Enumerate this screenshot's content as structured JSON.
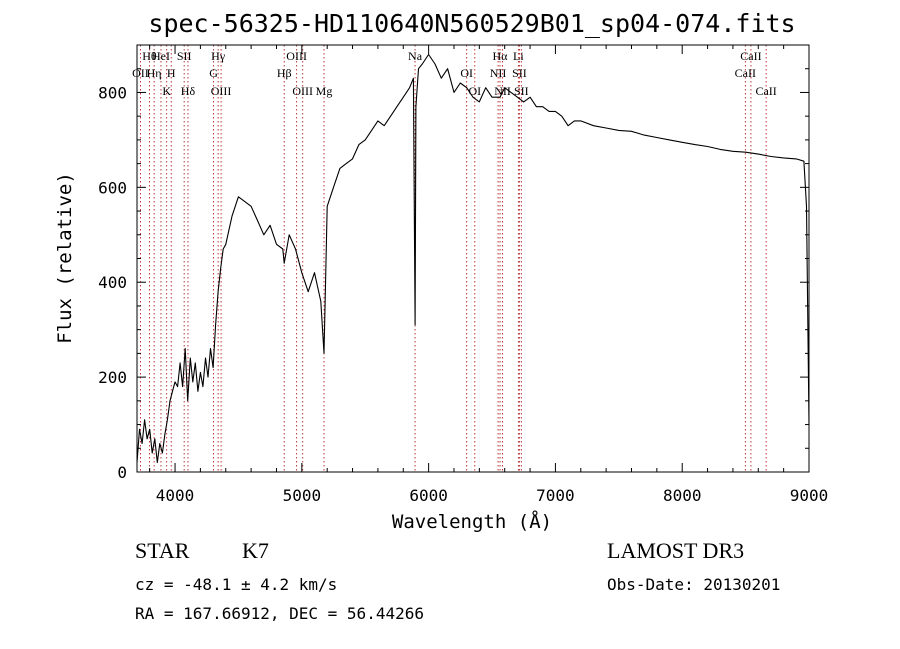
{
  "chart_data": {
    "type": "line",
    "title": "spec-56325-HD110640N560529B01_sp04-074.fits",
    "xlabel": "Wavelength (Å)",
    "ylabel": "Flux (relative)",
    "xlim": [
      3700,
      9000
    ],
    "ylim": [
      0,
      900
    ],
    "x_ticks": [
      4000,
      5000,
      6000,
      7000,
      8000,
      9000
    ],
    "y_ticks": [
      0,
      200,
      400,
      600,
      800
    ],
    "grid": false,
    "series": [
      {
        "color": "#000000",
        "x": [
          3700,
          3720,
          3740,
          3760,
          3780,
          3800,
          3820,
          3840,
          3860,
          3880,
          3900,
          3920,
          3940,
          3960,
          3980,
          4000,
          4020,
          4040,
          4060,
          4080,
          4100,
          4120,
          4140,
          4160,
          4180,
          4200,
          4220,
          4240,
          4260,
          4280,
          4300,
          4320,
          4340,
          4360,
          4380,
          4400,
          4450,
          4500,
          4550,
          4600,
          4650,
          4700,
          4750,
          4800,
          4850,
          4861,
          4900,
          4950,
          5000,
          5050,
          5100,
          5150,
          5175,
          5200,
          5250,
          5300,
          5350,
          5400,
          5450,
          5500,
          5550,
          5600,
          5650,
          5700,
          5750,
          5800,
          5850,
          5880,
          5893,
          5900,
          5920,
          5950,
          6000,
          6050,
          6100,
          6150,
          6200,
          6250,
          6300,
          6350,
          6400,
          6450,
          6500,
          6563,
          6600,
          6650,
          6700,
          6750,
          6800,
          6850,
          6900,
          6950,
          7000,
          7050,
          7100,
          7150,
          7200,
          7300,
          7400,
          7500,
          7600,
          7700,
          7800,
          7900,
          8000,
          8100,
          8200,
          8300,
          8400,
          8500,
          8600,
          8700,
          8800,
          8900,
          8960,
          8980,
          9000
        ],
        "y": [
          20,
          90,
          60,
          110,
          70,
          90,
          40,
          70,
          20,
          60,
          40,
          80,
          110,
          150,
          170,
          190,
          180,
          230,
          180,
          260,
          150,
          240,
          190,
          230,
          170,
          210,
          180,
          240,
          200,
          260,
          220,
          310,
          380,
          430,
          470,
          480,
          540,
          580,
          570,
          560,
          530,
          500,
          520,
          480,
          470,
          440,
          500,
          470,
          420,
          380,
          420,
          360,
          250,
          560,
          600,
          640,
          650,
          660,
          690,
          700,
          720,
          740,
          730,
          750,
          770,
          790,
          810,
          830,
          310,
          770,
          850,
          860,
          880,
          860,
          830,
          850,
          800,
          820,
          810,
          790,
          780,
          810,
          790,
          790,
          810,
          800,
          790,
          780,
          790,
          770,
          770,
          760,
          760,
          750,
          730,
          740,
          740,
          730,
          725,
          720,
          718,
          710,
          705,
          700,
          695,
          690,
          686,
          680,
          676,
          674,
          670,
          665,
          662,
          660,
          655,
          560,
          100
        ]
      }
    ],
    "annotations": [
      {
        "text": "Hθ",
        "x": 3798
      },
      {
        "text": "OII",
        "x": 3727
      },
      {
        "text": "K",
        "x": 3934
      },
      {
        "text": "HeI",
        "x": 3889
      },
      {
        "text": "Hη",
        "x": 3835
      },
      {
        "text": "Hδ",
        "x": 4102
      },
      {
        "text": "SII",
        "x": 4072
      },
      {
        "text": "H",
        "x": 3970
      },
      {
        "text": "OIII",
        "x": 4363
      },
      {
        "text": "Hγ",
        "x": 4340
      },
      {
        "text": "G",
        "x": 4304
      },
      {
        "text": "OIII",
        "x": 5007
      },
      {
        "text": "OIII",
        "x": 4959
      },
      {
        "text": "Hβ",
        "x": 4861
      },
      {
        "text": "Mg",
        "x": 5175
      },
      {
        "text": "Na",
        "x": 5893
      },
      {
        "text": "OI",
        "x": 6300
      },
      {
        "text": "OI",
        "x": 6364
      },
      {
        "text": "Hα",
        "x": 6563
      },
      {
        "text": "SII",
        "x": 6716
      },
      {
        "text": "NII",
        "x": 6583
      },
      {
        "text": "Li",
        "x": 6708
      },
      {
        "text": "NII",
        "x": 6548
      },
      {
        "text": "SII",
        "x": 6731
      },
      {
        "text": "CaII",
        "x": 8542
      },
      {
        "text": "CaII",
        "x": 8498
      },
      {
        "text": "CaII",
        "x": 8662
      }
    ]
  },
  "info": {
    "object_class": "STAR",
    "subclass": "K7",
    "survey": "LAMOST DR3",
    "cz": "cz = -48.1 ± 4.2 km/s",
    "obs_date": "Obs-Date: 20130201",
    "coords": "RA = 167.66912, DEC =  56.44266"
  },
  "colors": {
    "spectrum": "#000000",
    "line_markers": "#b22222",
    "background": "#ffffff"
  }
}
